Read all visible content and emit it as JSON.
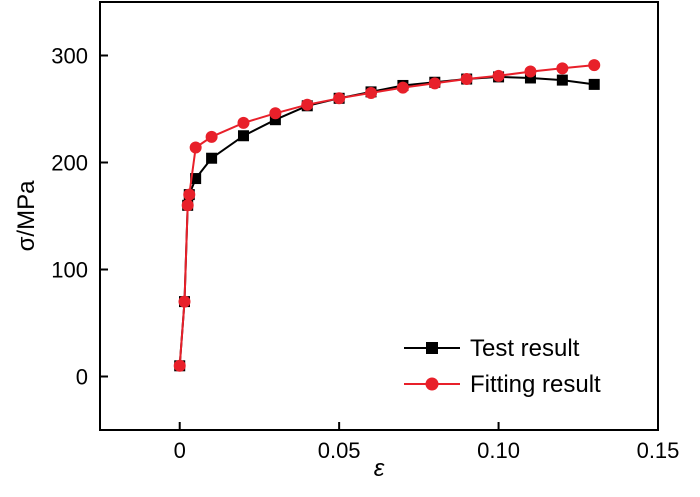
{
  "chart_data": {
    "type": "line",
    "title": "",
    "xlabel": "ε",
    "ylabel": "σ/MPa",
    "xlim": [
      -0.025,
      0.15
    ],
    "ylim": [
      -50,
      350
    ],
    "xticks": [
      0,
      0.05,
      0.1,
      0.15
    ],
    "xtick_labels": [
      "0",
      "0.05",
      "0.10",
      "0.15"
    ],
    "yticks": [
      0,
      100,
      200,
      300
    ],
    "ytick_labels": [
      "0",
      "100",
      "200",
      "300"
    ],
    "grid": false,
    "legend_position": "bottom-right",
    "series": [
      {
        "name": "Test result",
        "color": "#000000",
        "marker": "square",
        "x": [
          0,
          0.0015,
          0.0025,
          0.003,
          0.005,
          0.01,
          0.02,
          0.03,
          0.04,
          0.05,
          0.06,
          0.07,
          0.08,
          0.09,
          0.1,
          0.11,
          0.12,
          0.13
        ],
        "y": [
          10,
          70,
          160,
          170,
          185,
          204,
          225,
          240,
          253,
          260,
          266,
          272,
          275,
          278,
          280,
          279,
          277,
          273
        ]
      },
      {
        "name": "Fitting result",
        "color": "#e8202a",
        "marker": "circle",
        "x": [
          0,
          0.0015,
          0.0025,
          0.003,
          0.005,
          0.01,
          0.02,
          0.03,
          0.04,
          0.05,
          0.06,
          0.07,
          0.08,
          0.09,
          0.1,
          0.11,
          0.12,
          0.13
        ],
        "y": [
          10,
          70,
          160,
          170,
          214,
          224,
          237,
          246,
          254,
          260,
          265,
          270,
          274,
          278,
          281,
          285,
          288,
          291
        ]
      }
    ]
  }
}
